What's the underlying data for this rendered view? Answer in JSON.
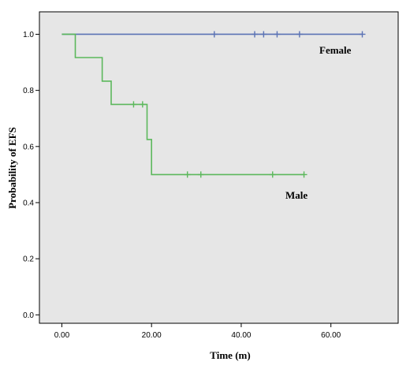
{
  "chart_data": {
    "type": "line",
    "title": "",
    "xlabel": "Time (m)",
    "ylabel": "Probability of EFS",
    "xlim": [
      -5,
      75
    ],
    "ylim": [
      -0.03,
      1.08
    ],
    "x_ticks": [
      0,
      20,
      40,
      60
    ],
    "x_tick_labels": [
      "0.00",
      "20.00",
      "40.00",
      "60.00"
    ],
    "y_ticks": [
      0,
      0.2,
      0.4,
      0.6,
      0.8,
      1.0
    ],
    "y_tick_labels": [
      "0.0",
      "0.2",
      "0.4",
      "0.6",
      "0.8",
      "1.0"
    ],
    "grid": false,
    "background": "#e6e6e6",
    "series": [
      {
        "name": "Female",
        "color": "#5b73b5",
        "step_x": [
          0,
          67
        ],
        "step_y": [
          1.0,
          1.0
        ],
        "censored_x": [
          34,
          43,
          45,
          48,
          53,
          67
        ],
        "censored_y": [
          1.0,
          1.0,
          1.0,
          1.0,
          1.0,
          1.0
        ]
      },
      {
        "name": "Male",
        "color": "#5cb85c",
        "step_x": [
          0,
          3,
          9,
          11,
          19,
          20,
          54
        ],
        "step_y": [
          1.0,
          0.917,
          0.833,
          0.75,
          0.625,
          0.5,
          0.5
        ],
        "censored_x": [
          16,
          18,
          28,
          31,
          47,
          54
        ],
        "censored_y": [
          0.75,
          0.75,
          0.5,
          0.5,
          0.5,
          0.5
        ]
      }
    ]
  }
}
